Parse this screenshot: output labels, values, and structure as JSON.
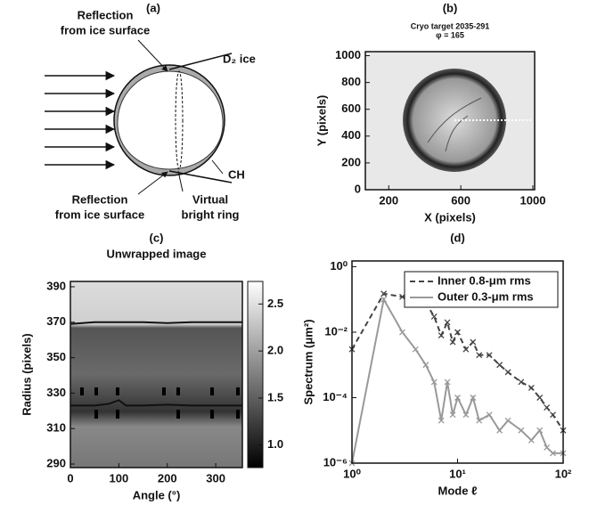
{
  "diagram": {
    "label": "(a)",
    "reflection_top": [
      "Reflection",
      "from ice surface"
    ],
    "ice": "D₂ ice",
    "shell": "CH",
    "reflection_bottom": [
      "Reflection",
      "from ice surface"
    ],
    "ring": [
      "Virtual",
      "bright ring"
    ]
  },
  "chart_data": [
    {
      "type": "image",
      "panel": "(b)",
      "title": "Cryo target 2035-291",
      "subtitle": "φ = 165",
      "x_label": "X (pixels)",
      "y_label": "Y (pixels)",
      "xlim": [
        70,
        1010
      ],
      "xticks": [
        200,
        600,
        1000
      ],
      "ylim": [
        0,
        1030
      ],
      "yticks": [
        0,
        200,
        400,
        600,
        800,
        1000
      ]
    },
    {
      "type": "heatmap",
      "panel": "(c)",
      "title": "Unwrapped image",
      "x_label": "Angle (°)",
      "y_label": "Radius (pixels)",
      "xlim": [
        0,
        355
      ],
      "xticks": [
        0,
        100,
        200,
        300
      ],
      "ylim": [
        288,
        393
      ],
      "yticks": [
        290,
        310,
        330,
        350,
        370,
        390
      ],
      "clim": [
        0.76,
        2.74
      ],
      "cticks": [
        {
          "value": 1,
          "label": "1.0"
        },
        1.5,
        {
          "value": 2,
          "label": "2.0"
        },
        2.5
      ],
      "series": [
        {
          "color": "#111111",
          "x": [
            0,
            50,
            100,
            150,
            200,
            250,
            300,
            355
          ],
          "values": [
            369,
            370,
            370,
            370,
            369.5,
            370,
            370,
            370
          ]
        },
        {
          "color": "#111111",
          "x": [
            0,
            50,
            80,
            100,
            115,
            150,
            200,
            250,
            300,
            355
          ],
          "values": [
            323,
            323,
            324,
            326,
            323,
            323,
            323.5,
            323,
            323,
            323
          ]
        }
      ]
    },
    {
      "type": "line",
      "panel": "(d)",
      "x_label": "Mode ℓ",
      "y_label": "Spectrum (μm²)",
      "log_x": true,
      "log_y": true,
      "legend": "upper right",
      "xlim": [
        1,
        100
      ],
      "xticks": [
        {
          "value": 1,
          "label": "10⁰"
        },
        {
          "value": 10,
          "label": "10¹"
        },
        {
          "value": 100,
          "label": "10²"
        }
      ],
      "ylim": [
        1e-06,
        1.5
      ],
      "yticks": [
        {
          "value": 1,
          "label": "10⁰"
        },
        {
          "value": 0.01,
          "label": "10⁻²"
        },
        {
          "value": 0.0001,
          "label": "10⁻⁴"
        },
        {
          "value": 1e-06,
          "label": "10⁻⁶"
        }
      ],
      "x": [
        1,
        2,
        3,
        4,
        5,
        6,
        7,
        8,
        9,
        10,
        12,
        14,
        16,
        20,
        25,
        30,
        40,
        50,
        60,
        70,
        80,
        100
      ],
      "series": [
        {
          "name": "Inner 0.8-μm rms",
          "color": "#444444",
          "dash": true,
          "values": [
            0.003,
            0.15,
            0.12,
            0.1,
            0.08,
            0.03,
            0.008,
            0.02,
            0.005,
            0.01,
            0.003,
            0.005,
            0.002,
            0.002,
            0.001,
            0.0006,
            0.0003,
            0.0002,
            0.0001,
            5e-05,
            3e-05,
            1e-05
          ]
        },
        {
          "name": "Outer 0.3-μm rms",
          "color": "#999999",
          "dash": false,
          "values": [
            1e-06,
            0.1,
            0.01,
            0.003,
            0.001,
            0.0003,
            2e-05,
            0.0003,
            3e-05,
            0.0001,
            3e-05,
            0.0001,
            2e-05,
            3e-05,
            1e-05,
            2e-05,
            1e-05,
            5e-06,
            1e-05,
            3e-06,
            2e-06,
            2e-06
          ]
        }
      ]
    }
  ]
}
